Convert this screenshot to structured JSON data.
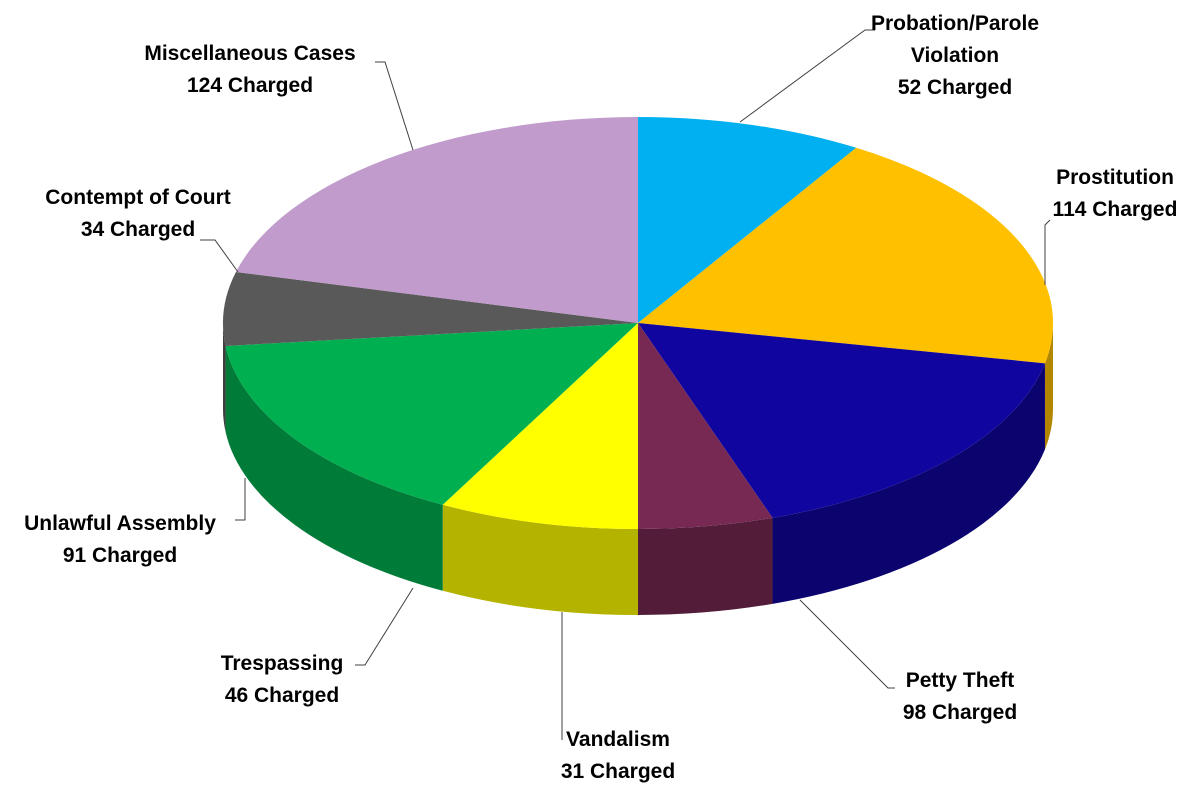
{
  "chart_data": {
    "type": "pie3d",
    "categories": [
      "Probation/Parole Violation",
      "Prostitution",
      "Petty Theft",
      "Vandalism",
      "Trespassing",
      "Unlawful Assembly",
      "Contempt of Court",
      "Miscellaneous Cases"
    ],
    "values": [
      52,
      114,
      98,
      31,
      46,
      91,
      34,
      124
    ],
    "value_labels": [
      "52 Charged",
      "114 Charged",
      "98 Charged",
      "31 Charged",
      "46 Charged",
      "91 Charged",
      "34 Charged",
      "124 Charged"
    ],
    "colors": [
      "#00b0f0",
      "#ffc000",
      "#10069f",
      "#772953",
      "#ffff00",
      "#00b050",
      "#595959",
      "#c09bcb"
    ]
  }
}
